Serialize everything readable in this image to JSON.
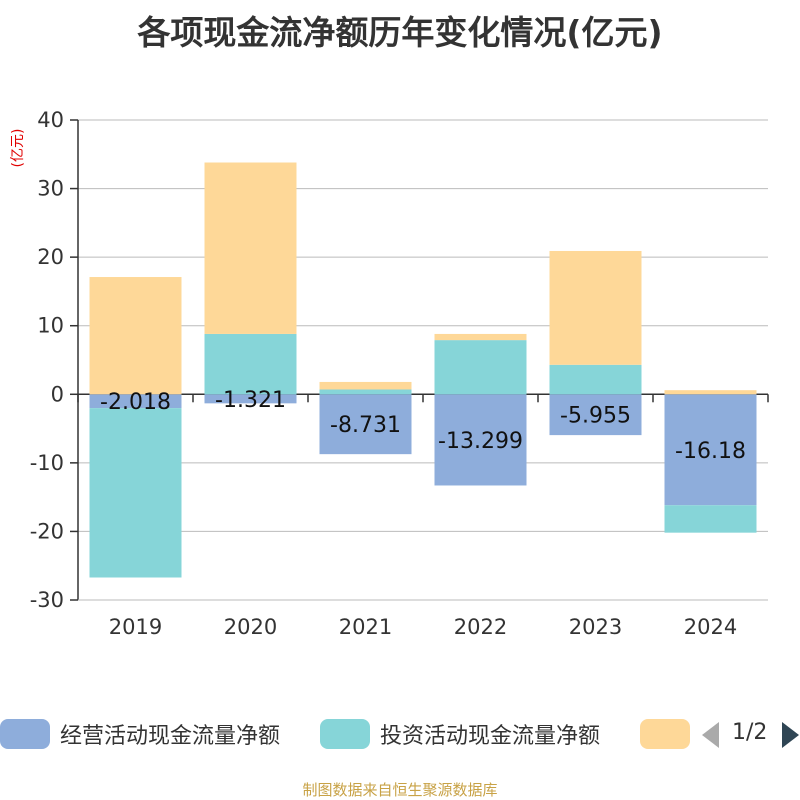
{
  "title": "各项现金流净额历年变化情况(亿元)",
  "chart_data": {
    "type": "bar",
    "stacked": true,
    "title": "各项现金流净额历年变化情况(亿元)",
    "ylabel": "(亿元)",
    "xlabel": "",
    "ylim": [
      -30,
      40
    ],
    "yticks": [
      40,
      30,
      20,
      10,
      0,
      -10,
      -20,
      -30
    ],
    "grid": true,
    "categories": [
      "2019",
      "2020",
      "2021",
      "2022",
      "2023",
      "2024"
    ],
    "series": [
      {
        "name": "经营活动现金流量净额",
        "color": "#8eaddb",
        "values": [
          -2.018,
          -1.321,
          -8.731,
          -13.299,
          -5.955,
          -16.18
        ],
        "labels": [
          "-2.018",
          "-1.321",
          "-8.731",
          "-13.299",
          "-5.955",
          "-16.18"
        ]
      },
      {
        "name": "投资活动现金流量净额",
        "color": "#86d5d8",
        "values": [
          -24.7,
          8.8,
          0.7,
          7.9,
          4.3,
          -4.0
        ]
      },
      {
        "name": "",
        "color": "#fed898",
        "values": [
          17.1,
          25.0,
          1.1,
          0.9,
          16.6,
          0.6
        ]
      }
    ]
  },
  "legend": {
    "items": [
      {
        "label": "经营活动现金流量净额",
        "color": "#8eaddb"
      },
      {
        "label": "投资活动现金流量净额",
        "color": "#86d5d8"
      },
      {
        "label": "",
        "color": "#fed898"
      }
    ],
    "page_indicator": "1/2"
  },
  "source": "制图数据来自恒生聚源数据库"
}
